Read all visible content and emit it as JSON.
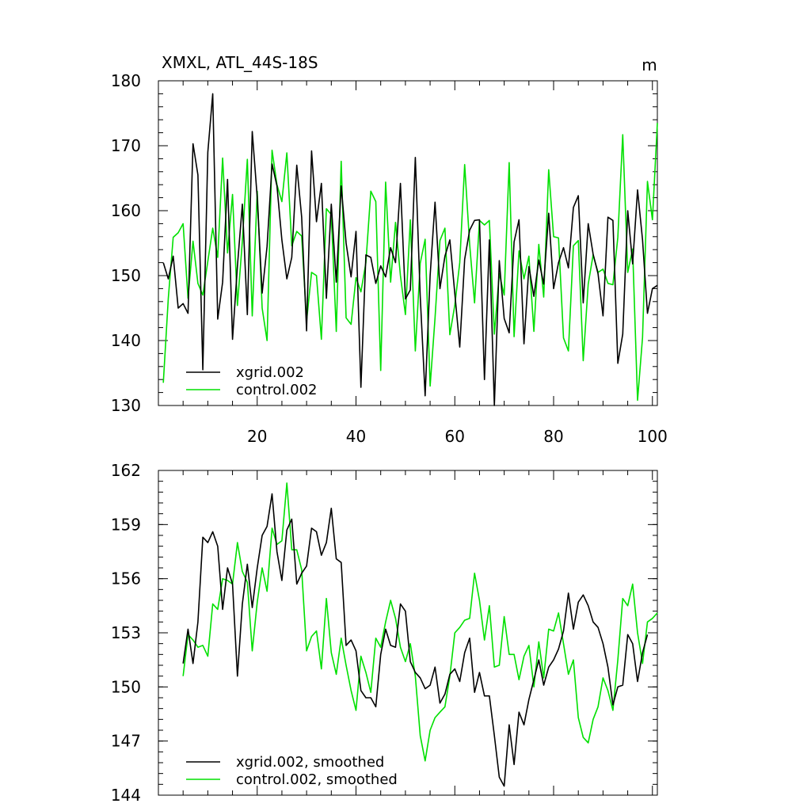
{
  "chart_data": [
    {
      "type": "line",
      "title": "XMXL, ATL_44S-18S",
      "units": "m",
      "xlabel": "",
      "ylabel": "",
      "xlim": [
        0,
        101
      ],
      "ylim": [
        130,
        180
      ],
      "x_ticks": [
        20,
        40,
        60,
        80,
        100
      ],
      "y_ticks": [
        130,
        140,
        150,
        160,
        170,
        180
      ],
      "x_start": 1,
      "legend_position": "bottom-left",
      "series": [
        {
          "name": "xgrid.002",
          "color": "#000000",
          "values": [
            152,
            149.5,
            153,
            145,
            145.7,
            144.2,
            170.3,
            165.5,
            135.5,
            169,
            178,
            143.3,
            149,
            164.8,
            140.2,
            151.5,
            161,
            144,
            172.2,
            162,
            147.3,
            154.5,
            167.2,
            163.8,
            155.5,
            149.5,
            152.8,
            167,
            159,
            141.5,
            169.2,
            158.3,
            164.2,
            146.5,
            161,
            149,
            163.8,
            155,
            149.8,
            156.8,
            132.8,
            153.2,
            152.8,
            148.8,
            151.5,
            149.8,
            154.3,
            152,
            164.2,
            146.4,
            147.8,
            168.2,
            146.8,
            131.5,
            150,
            161.3,
            148,
            153,
            155.5,
            147.2,
            139,
            152.5,
            157,
            158.5,
            158.6,
            134,
            155.5,
            130,
            152.3,
            143.4,
            141.2,
            155.2,
            158.6,
            139.5,
            151.4,
            146.8,
            152.4,
            148.7,
            159.6,
            148,
            152,
            154.3,
            151.2,
            160.5,
            162.3,
            145.8,
            158,
            153.3,
            150.3,
            143.8,
            159,
            158.5,
            136.5,
            141,
            160,
            151.8,
            163.2,
            155.5,
            144.2,
            148,
            148.5
          ]
        },
        {
          "name": "control.002",
          "color": "#00e000",
          "values": [
            133.5,
            146.5,
            155.9,
            156.6,
            158,
            146.5,
            155.3,
            148.8,
            147,
            152.2,
            157.3,
            152.8,
            168.1,
            153.5,
            162.5,
            145.4,
            155.3,
            167.9,
            143.8,
            163,
            145,
            140,
            169.3,
            164,
            161.4,
            168.9,
            154.6,
            156.8,
            156.1,
            143,
            150.5,
            150,
            140.2,
            160.3,
            159.4,
            141.4,
            167.6,
            143.5,
            142.5,
            149.7,
            147.5,
            152,
            163,
            161.4,
            135.4,
            164.4,
            149,
            158.2,
            150,
            144,
            158.6,
            138.4,
            151.9,
            155.6,
            133,
            143.5,
            155.4,
            157.3,
            140.9,
            145.5,
            152,
            167.1,
            154.8,
            145.8,
            158.5,
            157.8,
            158.5,
            141,
            150.3,
            147,
            167.4,
            140.6,
            153.8,
            149.5,
            153,
            141.4,
            154.8,
            146.7,
            166.3,
            156,
            155.8,
            140.4,
            138.4,
            154.6,
            155.4,
            136.9,
            148.7,
            153.2,
            150.5,
            151,
            148.8,
            148.6,
            155.9,
            171.7,
            150.5,
            154.1,
            130.8,
            140.5,
            164.5,
            158.6,
            173.5
          ]
        }
      ]
    },
    {
      "type": "line",
      "title": "",
      "xlabel": "",
      "ylabel": "",
      "xlim": [
        0,
        101
      ],
      "ylim": [
        144,
        162
      ],
      "x_ticks": [
        20,
        40,
        60,
        80,
        100
      ],
      "y_ticks": [
        144,
        147,
        150,
        153,
        156,
        159,
        162
      ],
      "x_start": 5,
      "legend_position": "bottom-left",
      "series": [
        {
          "name": "xgrid.002, smoothed",
          "color": "#000000",
          "values": [
            151.3,
            153.2,
            151.3,
            153.6,
            158.3,
            158,
            158.6,
            157.8,
            154.3,
            156.6,
            155.7,
            150.6,
            154.6,
            156.8,
            154.4,
            156.6,
            158.4,
            158.9,
            160.7,
            157.5,
            155.9,
            158.7,
            159.3,
            155.7,
            156.3,
            156.7,
            158.8,
            158.6,
            157.3,
            158,
            159.9,
            157.1,
            156.9,
            152.3,
            152.6,
            152,
            149.8,
            149.4,
            149.4,
            148.9,
            151.8,
            153.2,
            152.3,
            152.2,
            154.6,
            154.2,
            151.4,
            150.8,
            150.5,
            149.9,
            150.1,
            151.1,
            149.1,
            149.6,
            150.7,
            151,
            150.3,
            151.9,
            152.7,
            149.7,
            150.8,
            149.5,
            149.5,
            147.3,
            145,
            144.5,
            147.9,
            145.7,
            148.6,
            147.9,
            149.3,
            150.4,
            151.5,
            150.1,
            151.1,
            151.5,
            152.1,
            153.1,
            155.2,
            153.2,
            154.7,
            155.1,
            154.5,
            153.6,
            153.3,
            152.4,
            151.1,
            149,
            150,
            150.1,
            152.9,
            152.4,
            150.3,
            151.9,
            152.9
          ]
        },
        {
          "name": "control.002, smoothed",
          "color": "#00e000",
          "values": [
            150.6,
            152.9,
            152.6,
            152.2,
            152.3,
            151.7,
            154.6,
            154.3,
            156,
            155.9,
            155.7,
            158,
            156.4,
            155.8,
            152,
            154.7,
            156.6,
            155.3,
            158.8,
            157.9,
            158.1,
            161.3,
            157.6,
            157.6,
            156.5,
            152,
            152.8,
            153.1,
            151,
            154.9,
            151.9,
            150.7,
            152.7,
            151.2,
            149.8,
            148.7,
            151.7,
            150.8,
            149.7,
            152.7,
            152.2,
            153.6,
            154.8,
            153.8,
            152.2,
            151.4,
            152.4,
            150.6,
            147.3,
            145.9,
            147.6,
            148.3,
            148.6,
            148.9,
            150.6,
            153,
            153.3,
            153.7,
            153.8,
            156.3,
            154.8,
            152.6,
            154.5,
            151.1,
            151.2,
            153.9,
            151.8,
            151.8,
            150.4,
            151.7,
            152.3,
            150,
            152.5,
            150.5,
            153.2,
            153.1,
            154.1,
            152.4,
            150.7,
            151.5,
            148.3,
            147.2,
            146.9,
            148.2,
            148.9,
            150.5,
            149.8,
            148.7,
            151.5,
            154.9,
            154.5,
            155.7,
            153,
            151.3,
            153.6,
            153.8,
            154.1
          ]
        }
      ]
    }
  ]
}
